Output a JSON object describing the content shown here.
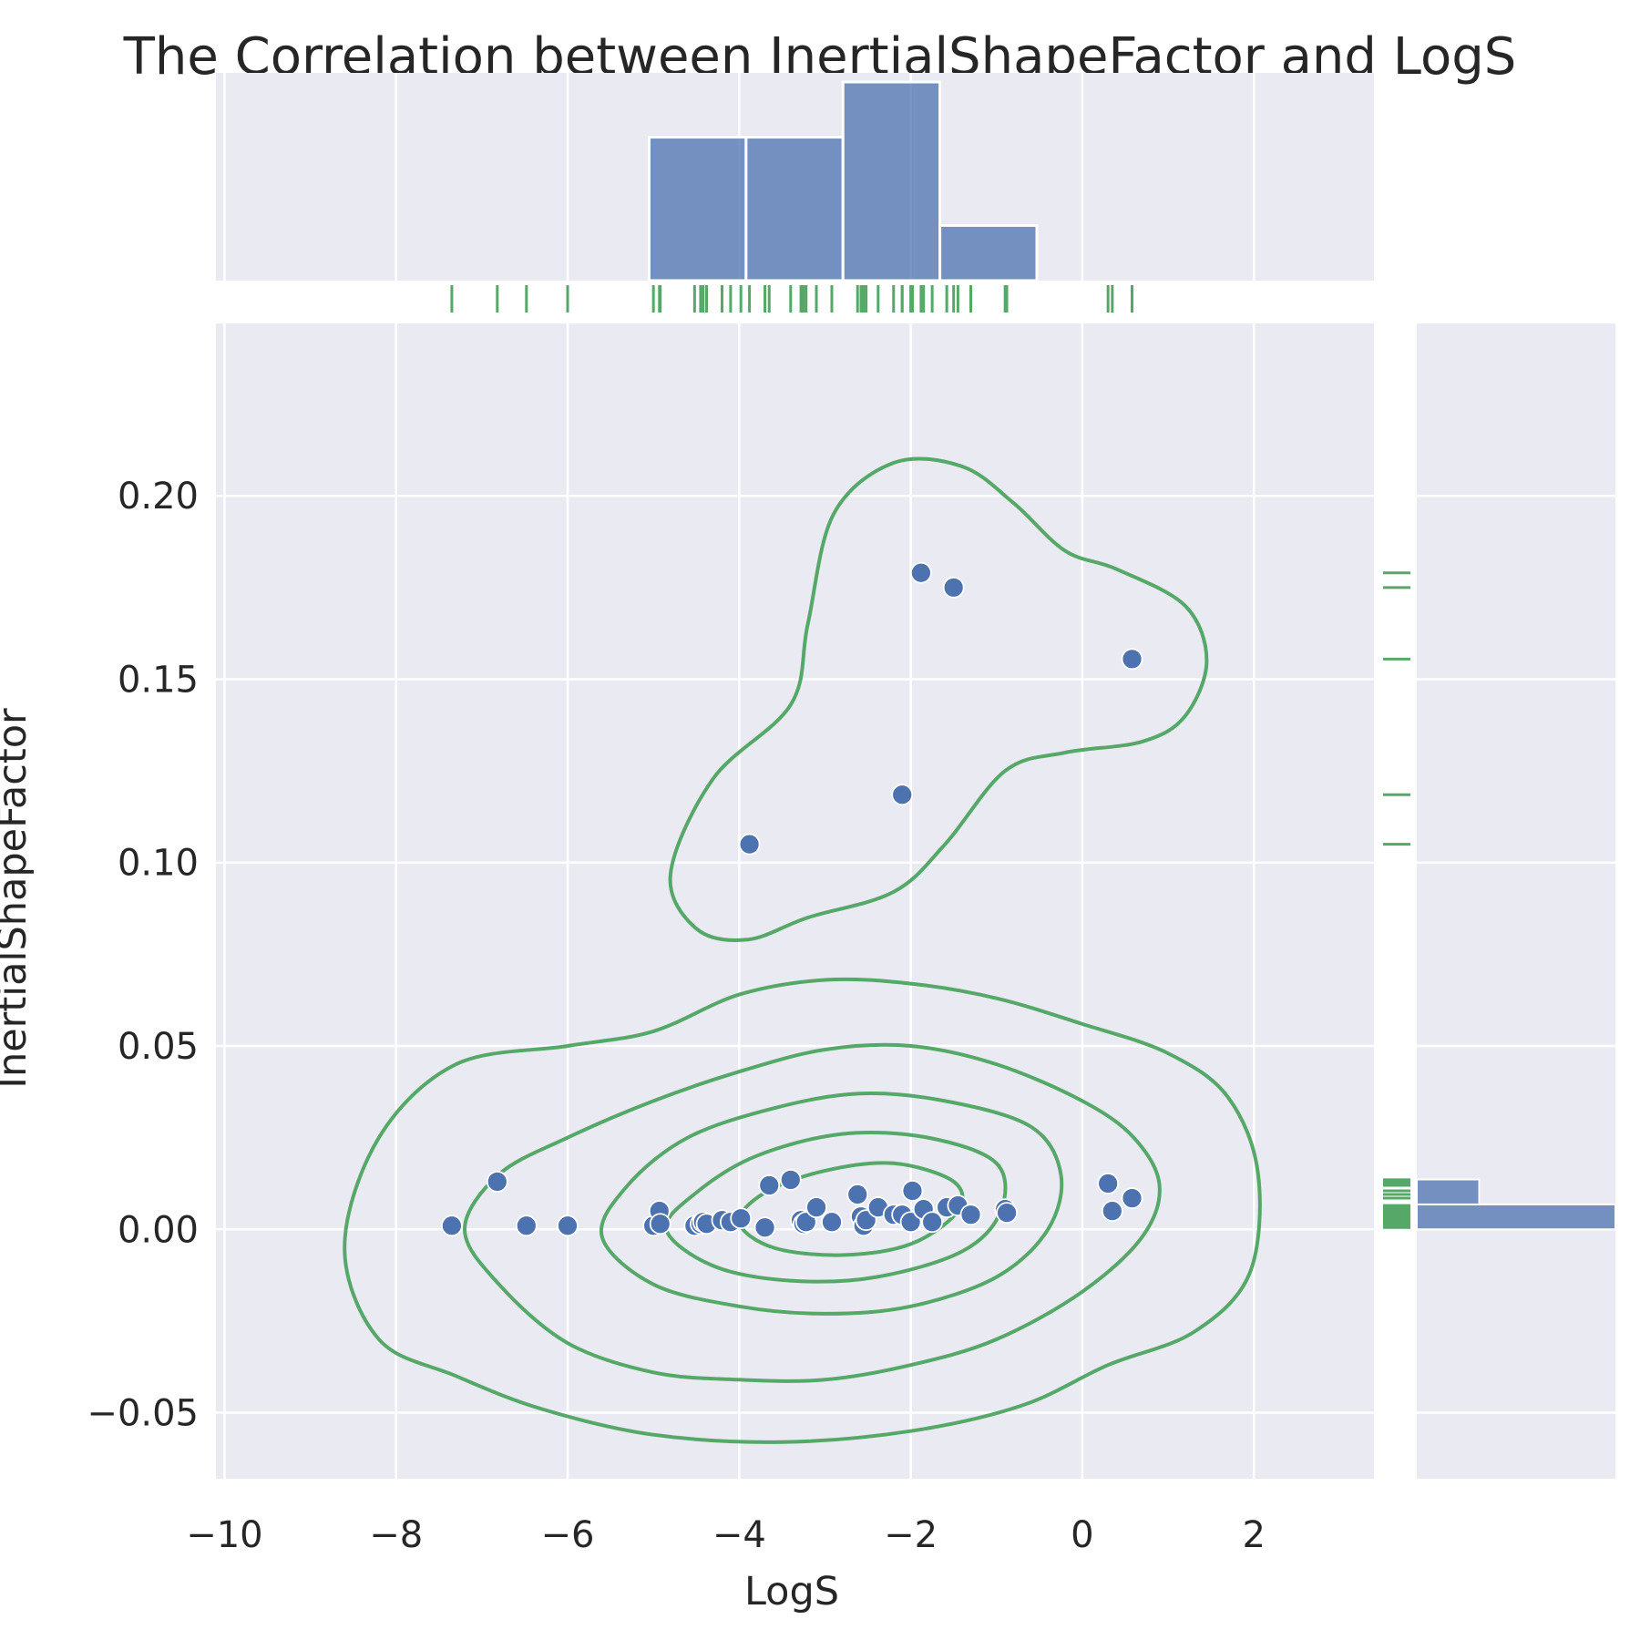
{
  "chart_data": {
    "type": "scatter",
    "title": "The Correlation between InertialShapeFactor and LogS",
    "xlabel": "LogS",
    "ylabel": "InertialShapeFactor",
    "xlim": [
      -10.1,
      3.4
    ],
    "ylim": [
      -0.068,
      0.247
    ],
    "x_ticks": [
      -10,
      -8,
      -6,
      -4,
      -2,
      0,
      2
    ],
    "x_tick_labels": [
      "−10",
      "−8",
      "−6",
      "−4",
      "−2",
      "0",
      "2"
    ],
    "y_ticks": [
      -0.05,
      0.0,
      0.05,
      0.1,
      0.15,
      0.2
    ],
    "y_tick_labels": [
      "−0.05",
      "0.00",
      "0.05",
      "0.10",
      "0.15",
      "0.20"
    ],
    "grid": true,
    "colors": {
      "background": "#eaeaf2",
      "grid": "#ffffff",
      "points": "#4c72b0",
      "kde": "#55a868",
      "rug": "#55a868",
      "hist": "#4c72b0"
    },
    "series": [
      {
        "x": [
          -7.35,
          -6.82,
          -6.48,
          -6.0,
          -5.0,
          -4.93,
          -4.92,
          -4.52,
          -4.45,
          -4.42,
          -4.38,
          -4.2,
          -4.1,
          -3.98,
          -3.88,
          -3.7,
          -3.65,
          -3.4,
          -3.28,
          -3.25,
          -3.22,
          -3.1,
          -2.92,
          -2.62,
          -2.58,
          -2.55,
          -2.52,
          -2.38,
          -2.2,
          -2.1,
          -2.1,
          -2.0,
          -1.98,
          -1.88,
          -1.85,
          -1.75,
          -1.58,
          -1.5,
          -1.45,
          -1.3,
          -0.9,
          -0.88,
          0.3,
          0.35,
          0.58,
          0.58
        ],
        "y": [
          0.001,
          0.013,
          0.001,
          0.001,
          0.001,
          0.005,
          0.0015,
          0.001,
          0.0015,
          0.002,
          0.0015,
          0.0025,
          0.002,
          0.003,
          0.105,
          0.0005,
          0.012,
          0.0135,
          0.0025,
          0.0015,
          0.002,
          0.006,
          0.002,
          0.0095,
          0.0035,
          0.001,
          0.0025,
          0.006,
          0.004,
          0.004,
          0.1185,
          0.002,
          0.0105,
          0.179,
          0.0055,
          0.002,
          0.006,
          0.175,
          0.0065,
          0.004,
          0.0055,
          0.0045,
          0.0125,
          0.005,
          0.0085,
          0.1555
        ]
      }
    ],
    "x_hist_bins": [
      -5.05,
      -3.92,
      -2.79,
      -1.66,
      -0.53
    ],
    "x_hist_counts": [
      13,
      13,
      18,
      5
    ],
    "y_hist_bins": [
      0.0,
      0.0068,
      0.0136
    ],
    "y_hist_counts": [
      35,
      11
    ],
    "kde_contours": [
      [
        [
          -8.6,
          -0.005
        ],
        [
          -8.2,
          0.025
        ],
        [
          -7.3,
          0.045
        ],
        [
          -6.0,
          0.05
        ],
        [
          -5.0,
          0.054
        ],
        [
          -4.0,
          0.064
        ],
        [
          -3.0,
          0.068
        ],
        [
          -2.0,
          0.067
        ],
        [
          -1.0,
          0.063
        ],
        [
          0.0,
          0.056
        ],
        [
          1.0,
          0.048
        ],
        [
          1.7,
          0.036
        ],
        [
          2.05,
          0.015
        ],
        [
          1.95,
          -0.012
        ],
        [
          1.3,
          -0.028
        ],
        [
          0.3,
          -0.037
        ],
        [
          -0.7,
          -0.048
        ],
        [
          -2.0,
          -0.055
        ],
        [
          -3.5,
          -0.058
        ],
        [
          -5.0,
          -0.056
        ],
        [
          -6.3,
          -0.049
        ],
        [
          -7.3,
          -0.04
        ],
        [
          -8.2,
          -0.03
        ]
      ],
      [
        [
          -7.2,
          0.0
        ],
        [
          -6.8,
          0.015
        ],
        [
          -6.0,
          0.025
        ],
        [
          -5.0,
          0.035
        ],
        [
          -4.0,
          0.043
        ],
        [
          -3.0,
          0.049
        ],
        [
          -2.0,
          0.05
        ],
        [
          -1.0,
          0.045
        ],
        [
          0.0,
          0.035
        ],
        [
          0.6,
          0.025
        ],
        [
          0.9,
          0.012
        ],
        [
          0.7,
          -0.002
        ],
        [
          0.0,
          -0.017
        ],
        [
          -1.0,
          -0.03
        ],
        [
          -2.0,
          -0.037
        ],
        [
          -3.0,
          -0.041
        ],
        [
          -4.0,
          -0.041
        ],
        [
          -5.0,
          -0.039
        ],
        [
          -6.0,
          -0.031
        ],
        [
          -6.8,
          -0.015
        ]
      ],
      [
        [
          -5.6,
          -0.002
        ],
        [
          -5.3,
          0.012
        ],
        [
          -4.6,
          0.025
        ],
        [
          -3.6,
          0.033
        ],
        [
          -2.6,
          0.037
        ],
        [
          -1.6,
          0.035
        ],
        [
          -0.6,
          0.028
        ],
        [
          -0.25,
          0.015
        ],
        [
          -0.4,
          0.0
        ],
        [
          -1.0,
          -0.013
        ],
        [
          -2.0,
          -0.021
        ],
        [
          -3.0,
          -0.023
        ],
        [
          -4.0,
          -0.021
        ],
        [
          -5.0,
          -0.015
        ]
      ],
      [
        [
          -4.85,
          0.0
        ],
        [
          -4.5,
          0.01
        ],
        [
          -3.8,
          0.02
        ],
        [
          -2.8,
          0.026
        ],
        [
          -1.8,
          0.025
        ],
        [
          -1.0,
          0.018
        ],
        [
          -0.95,
          0.005
        ],
        [
          -1.4,
          -0.006
        ],
        [
          -2.4,
          -0.013
        ],
        [
          -3.4,
          -0.014
        ],
        [
          -4.3,
          -0.01
        ]
      ],
      [
        [
          -4.0,
          0.002
        ],
        [
          -3.7,
          0.01
        ],
        [
          -3.0,
          0.016
        ],
        [
          -2.2,
          0.018
        ],
        [
          -1.5,
          0.013
        ],
        [
          -1.45,
          0.005
        ],
        [
          -2.0,
          -0.004
        ],
        [
          -2.8,
          -0.007
        ],
        [
          -3.6,
          -0.005
        ]
      ],
      [
        [
          -4.8,
          0.097
        ],
        [
          -4.3,
          0.123
        ],
        [
          -3.4,
          0.143
        ],
        [
          -3.2,
          0.165
        ],
        [
          -2.9,
          0.195
        ],
        [
          -2.2,
          0.209
        ],
        [
          -1.4,
          0.208
        ],
        [
          -0.8,
          0.198
        ],
        [
          -0.2,
          0.185
        ],
        [
          0.4,
          0.18
        ],
        [
          1.2,
          0.17
        ],
        [
          1.45,
          0.155
        ],
        [
          1.2,
          0.14
        ],
        [
          0.7,
          0.133
        ],
        [
          -0.2,
          0.13
        ],
        [
          -0.9,
          0.125
        ],
        [
          -1.6,
          0.105
        ],
        [
          -2.2,
          0.092
        ],
        [
          -3.2,
          0.085
        ],
        [
          -3.9,
          0.079
        ],
        [
          -4.5,
          0.082
        ]
      ]
    ]
  }
}
